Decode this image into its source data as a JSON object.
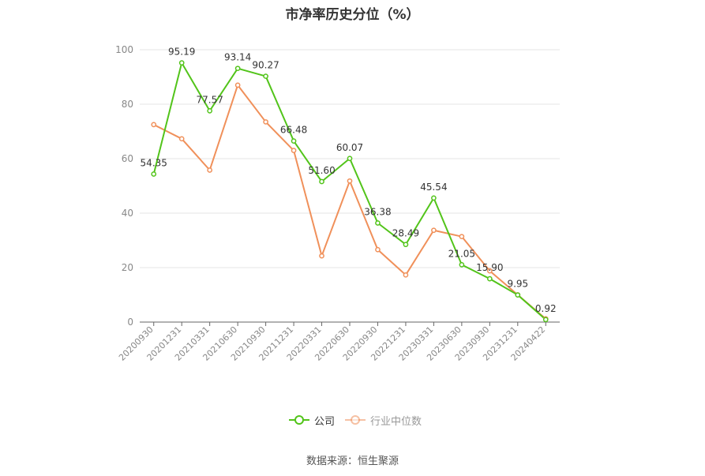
{
  "chart_data": {
    "type": "line",
    "title": "市净率历史分位（%）",
    "categories": [
      "20200930",
      "20201231",
      "20210331",
      "20210630",
      "20210930",
      "20211231",
      "20220331",
      "20220630",
      "20220930",
      "20221231",
      "20230331",
      "20230630",
      "20230930",
      "20231231",
      "20240422"
    ],
    "series": [
      {
        "name": "公司",
        "color": "#52c41a",
        "values": [
          54.35,
          95.19,
          77.57,
          93.14,
          90.27,
          66.48,
          51.6,
          60.07,
          36.38,
          28.49,
          45.54,
          21.05,
          15.9,
          9.95,
          0.92
        ],
        "labels": [
          "54.35",
          "95.19",
          "77.57",
          "93.14",
          "90.27",
          "66.48",
          "51.60",
          "60.07",
          "36.38",
          "28.49",
          "45.54",
          "21.05",
          "15.90",
          "9.95",
          "0.92"
        ]
      },
      {
        "name": "行业中位数",
        "color": "#f0905a",
        "values": [
          72.5,
          67.3,
          55.8,
          87.0,
          73.5,
          63.0,
          24.3,
          51.8,
          26.6,
          17.3,
          33.7,
          31.4,
          18.8,
          10.0,
          1.2
        ]
      }
    ],
    "yticks": [
      0,
      20,
      40,
      60,
      80,
      100
    ],
    "ylim": [
      0,
      100
    ],
    "grid": true,
    "legend_position": "bottom"
  },
  "footer": {
    "source": "数据来源：恒生聚源"
  }
}
